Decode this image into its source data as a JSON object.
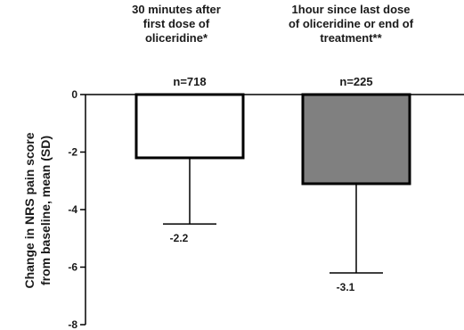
{
  "chart_data": {
    "type": "bar",
    "ylabel_lines": [
      "Change in NRS pain score",
      "from baseline, mean (SD)"
    ],
    "ylim": [
      -8,
      0
    ],
    "yticks": [
      0,
      -2,
      -4,
      -6,
      -8
    ],
    "ytick_labels": [
      "0",
      "-2",
      "-4",
      "-6",
      "-8"
    ],
    "grid": false,
    "categories": [
      {
        "header_lines": [
          "30 minutes after",
          "first dose of",
          "oliceridine*"
        ],
        "n_label": "n=718",
        "value": -2.2,
        "value_label": "-2.2",
        "error_bar_end": -4.5,
        "color": "#ffffff"
      },
      {
        "header_lines": [
          "1hour since last dose",
          "of oliceridine or end of",
          "treatment**"
        ],
        "n_label": "n=225",
        "value": -3.1,
        "value_label": "-3.1",
        "error_bar_end": -6.2,
        "color": "#808080"
      }
    ]
  }
}
